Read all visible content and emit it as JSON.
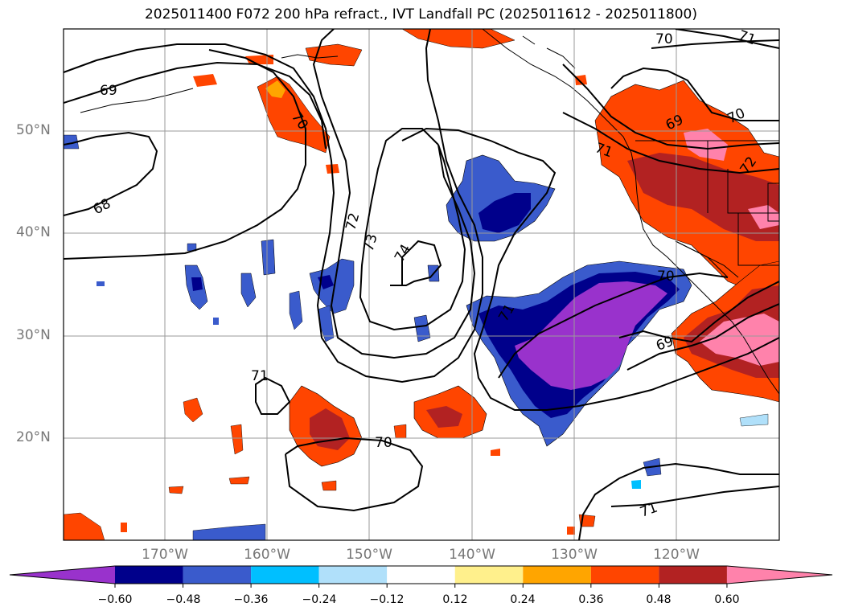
{
  "title": "2025011400 F072 200 hPa refract., IVT Landfall PC (2025011612 - 2025011800)",
  "lat_labels": [
    "50°N",
    "40°N",
    "30°N",
    "20°N"
  ],
  "lon_labels": [
    "170°W",
    "160°W",
    "150°W",
    "140°W",
    "130°W",
    "120°W"
  ],
  "contour_labels": [
    "69",
    "68",
    "70",
    "72",
    "73",
    "74",
    "71",
    "71",
    "70",
    "70",
    "71",
    "69",
    "70",
    "71",
    "72",
    "70",
    "69",
    "71"
  ],
  "colorbar": {
    "ticks": [
      "−0.60",
      "−0.48",
      "−0.36",
      "−0.24",
      "−0.12",
      "0.12",
      "0.24",
      "0.36",
      "0.48",
      "0.60"
    ],
    "colors": [
      "#9932cc",
      "#00008b",
      "#3a5bcc",
      "#00bfff",
      "#b0e0fa",
      "#ffffff",
      "#fff08c",
      "#ffa500",
      "#ff4500",
      "#b22222",
      "#ff82ab"
    ]
  },
  "colors": {
    "neg1": "#9932cc",
    "neg2": "#00008b",
    "neg3": "#3a5bcc",
    "neg4": "#00bfff",
    "neg5": "#b0e0fa",
    "pos1": "#fff08c",
    "pos2": "#ffa500",
    "pos3": "#ff4500",
    "pos4": "#b22222",
    "pos5": "#ff82ab"
  }
}
